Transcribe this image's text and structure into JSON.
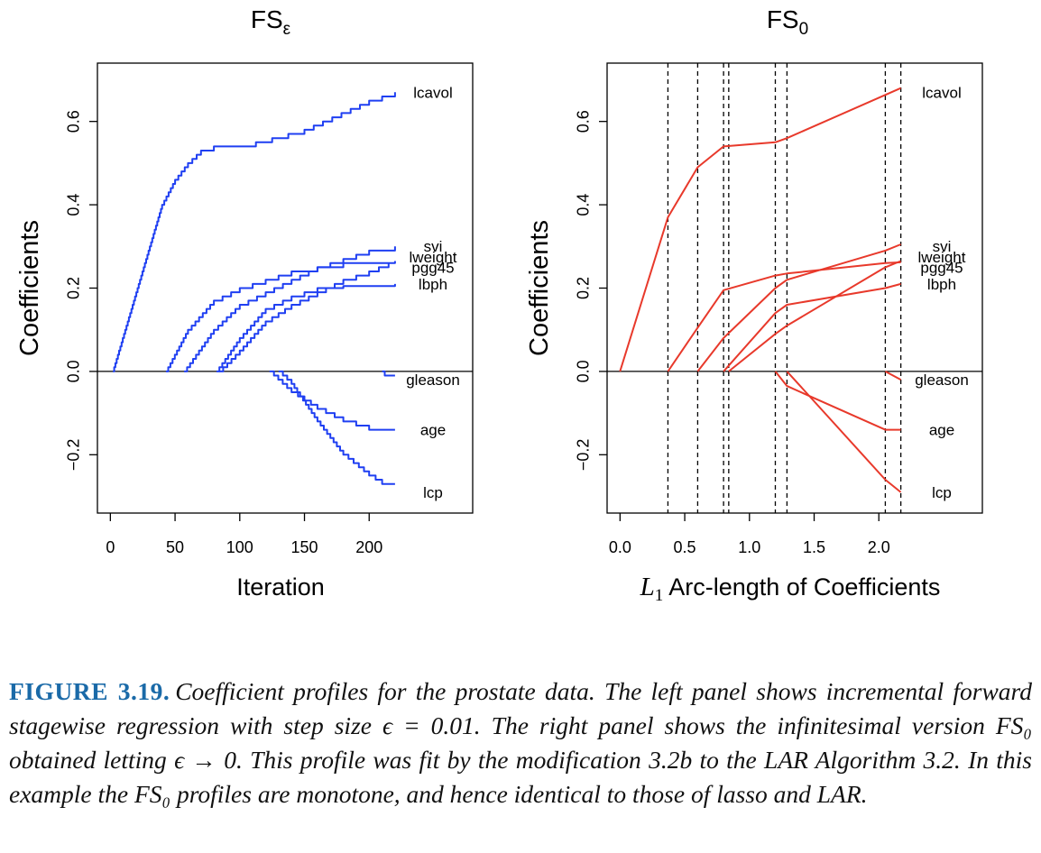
{
  "chart_data": [
    {
      "type": "line",
      "title": "FS",
      "title_subscript": "ε",
      "xlabel": "Iteration",
      "ylabel": "Coefficients",
      "xlim": [
        -10,
        280
      ],
      "ylim": [
        -0.34,
        0.74
      ],
      "xticks": [
        0,
        50,
        100,
        150,
        200
      ],
      "xtick_labels": [
        "0",
        "50",
        "100",
        "150",
        "200"
      ],
      "yticks": [
        -0.2,
        0.0,
        0.2,
        0.4,
        0.6
      ],
      "ytick_labels": [
        "−0.2",
        "0.0",
        "0.2",
        "0.4",
        "0.6"
      ],
      "grid": false,
      "series_color": "#1f3ff2",
      "step": 0.01,
      "zero_line": true,
      "series": [
        {
          "label": "lcavol",
          "points": [
            [
              2,
              0
            ],
            [
              40,
              0.4
            ],
            [
              50,
              0.46
            ],
            [
              60,
              0.5
            ],
            [
              70,
              0.53
            ],
            [
              80,
              0.54
            ],
            [
              100,
              0.54
            ],
            [
              150,
              0.58
            ],
            [
              200,
              0.65
            ],
            [
              220,
              0.67
            ]
          ]
        },
        {
          "label": "svi",
          "points": [
            [
              57,
              0
            ],
            [
              80,
              0.1
            ],
            [
              100,
              0.16
            ],
            [
              120,
              0.19
            ],
            [
              140,
              0.22
            ],
            [
              160,
              0.25
            ],
            [
              180,
              0.27
            ],
            [
              200,
              0.29
            ],
            [
              220,
              0.3
            ]
          ]
        },
        {
          "label": "lweight",
          "points": [
            [
              43,
              0
            ],
            [
              60,
              0.1
            ],
            [
              80,
              0.17
            ],
            [
              100,
              0.2
            ],
            [
              120,
              0.22
            ],
            [
              140,
              0.24
            ],
            [
              160,
              0.25
            ],
            [
              180,
              0.26
            ],
            [
              220,
              0.265
            ]
          ]
        },
        {
          "label": "pgg45",
          "points": [
            [
              84,
              0
            ],
            [
              100,
              0.05
            ],
            [
              120,
              0.12
            ],
            [
              140,
              0.16
            ],
            [
              160,
              0.19
            ],
            [
              180,
              0.22
            ],
            [
              200,
              0.24
            ],
            [
              215,
              0.26
            ]
          ]
        },
        {
          "label": "lbph",
          "points": [
            [
              82,
              0
            ],
            [
              100,
              0.08
            ],
            [
              120,
              0.15
            ],
            [
              140,
              0.18
            ],
            [
              160,
              0.2
            ],
            [
              180,
              0.205
            ],
            [
              220,
              0.21
            ]
          ]
        },
        {
          "label": "gleason",
          "points": [
            [
              210,
              0
            ],
            [
              212,
              -0.01
            ],
            [
              220,
              -0.01
            ]
          ]
        },
        {
          "label": "age",
          "points": [
            [
              123,
              0
            ],
            [
              140,
              -0.05
            ],
            [
              160,
              -0.09
            ],
            [
              180,
              -0.12
            ],
            [
              200,
              -0.14
            ],
            [
              220,
              -0.14
            ]
          ]
        },
        {
          "label": "lcp",
          "points": [
            [
              130,
              0
            ],
            [
              140,
              -0.03
            ],
            [
              160,
              -0.12
            ],
            [
              180,
              -0.2
            ],
            [
              200,
              -0.25
            ],
            [
              210,
              -0.27
            ],
            [
              220,
              -0.27
            ]
          ]
        }
      ],
      "end_labels": [
        {
          "text": "lcavol",
          "y": 0.67
        },
        {
          "text": "svi",
          "y": 0.3
        },
        {
          "text": "lweight",
          "y": 0.275
        },
        {
          "text": "pgg45",
          "y": 0.25
        },
        {
          "text": "lbph",
          "y": 0.21
        },
        {
          "text": "gleason",
          "y": -0.02
        },
        {
          "text": "age",
          "y": -0.14
        },
        {
          "text": "lcp",
          "y": -0.29
        }
      ]
    },
    {
      "type": "line",
      "title": "FS",
      "title_subscript": "0",
      "xlabel_italic": "L",
      "xlabel_subscript": "1",
      "xlabel": " Arc-length of Coefficients",
      "ylabel": "Coefficients",
      "xlim": [
        -0.1,
        2.8
      ],
      "ylim": [
        -0.34,
        0.74
      ],
      "xticks": [
        0.0,
        0.5,
        1.0,
        1.5,
        2.0
      ],
      "xtick_labels": [
        "0.0",
        "0.5",
        "1.0",
        "1.5",
        "2.0"
      ],
      "yticks": [
        -0.2,
        0.0,
        0.2,
        0.4,
        0.6
      ],
      "ytick_labels": [
        "−0.2",
        "0.0",
        "0.2",
        "0.4",
        "0.6"
      ],
      "grid": false,
      "series_color": "#e8392b",
      "zero_line": true,
      "breakpoints": [
        0.37,
        0.6,
        0.8,
        0.84,
        1.2,
        1.29,
        2.05,
        2.17
      ],
      "series": [
        {
          "label": "lcavol",
          "points": [
            [
              0,
              0
            ],
            [
              0.37,
              0.37
            ],
            [
              0.6,
              0.49
            ],
            [
              0.8,
              0.54
            ],
            [
              1.2,
              0.55
            ],
            [
              1.29,
              0.56
            ],
            [
              2.17,
              0.68
            ]
          ]
        },
        {
          "label": "svi",
          "points": [
            [
              0.6,
              0
            ],
            [
              0.8,
              0.08
            ],
            [
              1.2,
              0.2
            ],
            [
              1.29,
              0.22
            ],
            [
              2.05,
              0.29
            ],
            [
              2.17,
              0.305
            ]
          ]
        },
        {
          "label": "lweight",
          "points": [
            [
              0.37,
              0
            ],
            [
              0.6,
              0.105
            ],
            [
              0.8,
              0.195
            ],
            [
              1.2,
              0.23
            ],
            [
              1.29,
              0.235
            ],
            [
              2.05,
              0.26
            ],
            [
              2.17,
              0.262
            ]
          ]
        },
        {
          "label": "pgg45",
          "points": [
            [
              0.84,
              0
            ],
            [
              1.2,
              0.09
            ],
            [
              1.29,
              0.11
            ],
            [
              2.05,
              0.25
            ],
            [
              2.17,
              0.265
            ]
          ]
        },
        {
          "label": "lbph",
          "points": [
            [
              0.8,
              0
            ],
            [
              1.2,
              0.14
            ],
            [
              1.29,
              0.16
            ],
            [
              2.05,
              0.2
            ],
            [
              2.17,
              0.21
            ]
          ]
        },
        {
          "label": "gleason",
          "points": [
            [
              2.05,
              0
            ],
            [
              2.17,
              -0.02
            ]
          ]
        },
        {
          "label": "age",
          "points": [
            [
              1.2,
              0
            ],
            [
              1.29,
              -0.035
            ],
            [
              2.05,
              -0.14
            ],
            [
              2.17,
              -0.14
            ]
          ]
        },
        {
          "label": "lcp",
          "points": [
            [
              1.29,
              0
            ],
            [
              2.05,
              -0.26
            ],
            [
              2.17,
              -0.29
            ]
          ]
        }
      ],
      "end_labels": [
        {
          "text": "lcavol",
          "y": 0.67
        },
        {
          "text": "svi",
          "y": 0.3
        },
        {
          "text": "lweight",
          "y": 0.275
        },
        {
          "text": "pgg45",
          "y": 0.25
        },
        {
          "text": "lbph",
          "y": 0.21
        },
        {
          "text": "gleason",
          "y": -0.02
        },
        {
          "text": "age",
          "y": -0.14
        },
        {
          "text": "lcp",
          "y": -0.29
        }
      ]
    }
  ],
  "caption": {
    "label": "FIGURE 3.19.",
    "text": "Coefficient profiles for the prostate data. The left panel shows incremental forward stagewise regression with step size ϵ = 0.01. The right panel shows the infinitesimal version FS₀ obtained letting ϵ → 0. This profile was fit by the modification 3.2b to the LAR Algorithm 3.2. In this example the FS₀ profiles are monotone, and hence identical to those of lasso and LAR."
  }
}
